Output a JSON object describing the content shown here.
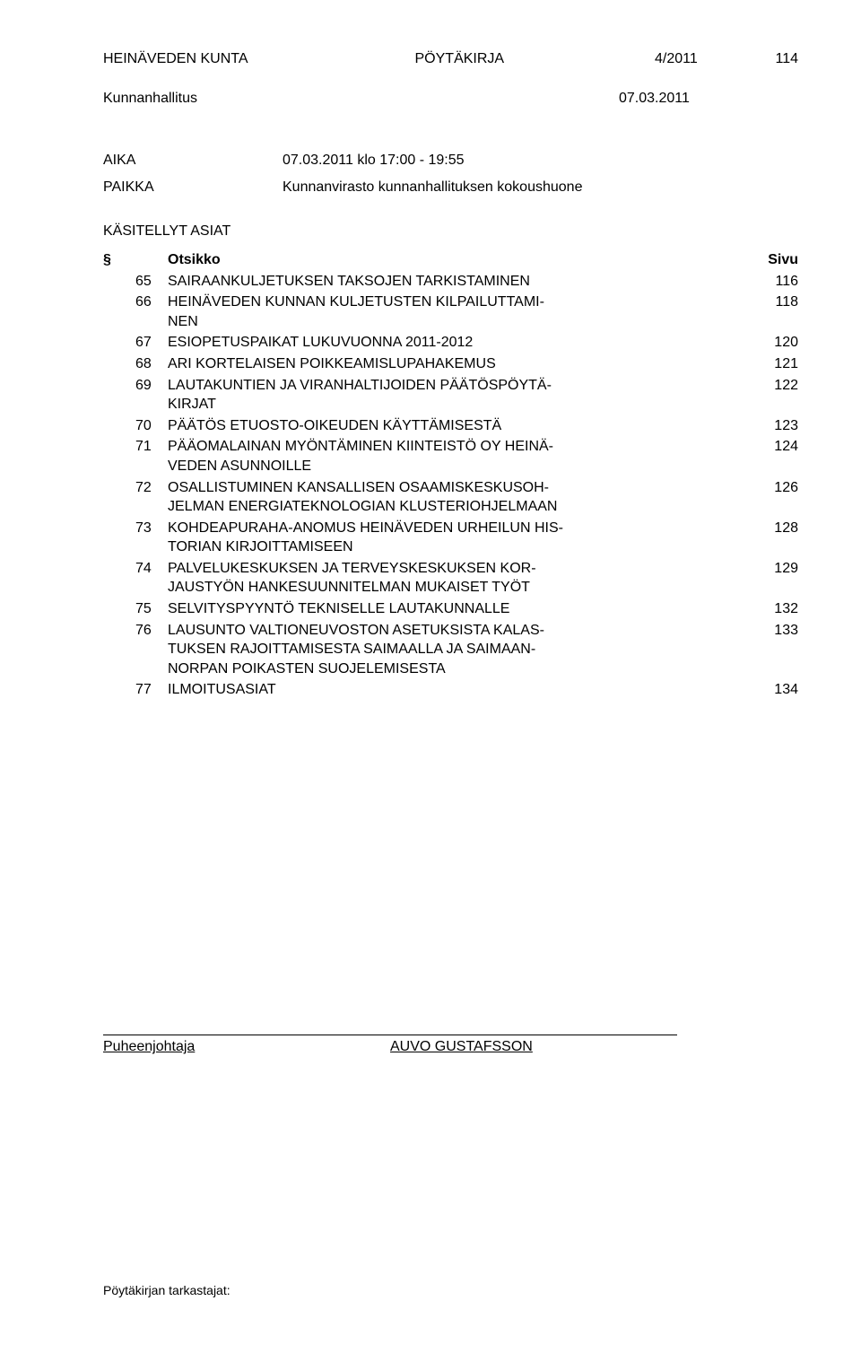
{
  "header": {
    "org": "HEINÄVEDEN KUNTA",
    "doc_type": "PÖYTÄKIRJA",
    "doc_number": "4/2011",
    "page_number": "114"
  },
  "subheader": {
    "board": "Kunnanhallitus",
    "date": "07.03.2011"
  },
  "meeting": {
    "aika_label": "AIKA",
    "aika_value": "07.03.2011 klo 17:00 - 19:55",
    "paikka_label": "PAIKKA",
    "paikka_value": "Kunnanvirasto kunnanhallituksen kokoushuone"
  },
  "toc": {
    "heading": "KÄSITELLYT ASIAT",
    "col_sym": "§",
    "col_title": "Otsikko",
    "col_page": "Sivu",
    "items": [
      {
        "num": "65",
        "title": "SAIRAANKULJETUKSEN TAKSOJEN TARKISTAMINEN",
        "page": "116"
      },
      {
        "num": "66",
        "title": "HEINÄVEDEN KUNNAN KULJETUSTEN KILPAILUTTAMI-\nNEN",
        "page": "118"
      },
      {
        "num": "67",
        "title": "ESIOPETUSPAIKAT LUKUVUONNA 2011-2012",
        "page": "120"
      },
      {
        "num": "68",
        "title": "ARI KORTELAISEN POIKKEAMISLUPAHAKEMUS",
        "page": "121"
      },
      {
        "num": "69",
        "title": "LAUTAKUNTIEN JA VIRANHALTIJOIDEN PÄÄTÖSPÖYTÄ-\nKIRJAT",
        "page": "122"
      },
      {
        "num": "70",
        "title": "PÄÄTÖS ETUOSTO-OIKEUDEN KÄYTTÄMISESTÄ",
        "page": "123"
      },
      {
        "num": "71",
        "title": "PÄÄOMALAINAN MYÖNTÄMINEN KIINTEISTÖ OY HEINÄ-\nVEDEN ASUNNOILLE",
        "page": "124"
      },
      {
        "num": "72",
        "title": "OSALLISTUMINEN KANSALLISEN OSAAMISKESKUSOH-\nJELMAN ENERGIATEKNOLOGIAN KLUSTERIOHJELMAAN",
        "page": "126"
      },
      {
        "num": "73",
        "title": "KOHDEAPURAHA-ANOMUS HEINÄVEDEN URHEILUN HIS-\nTORIAN KIRJOITTAMISEEN",
        "page": "128"
      },
      {
        "num": "74",
        "title": "PALVELUKESKUKSEN JA TERVEYSKESKUKSEN KOR-\nJAUSTYÖN HANKESUUNNITELMAN MUKAISET TYÖT",
        "page": "129"
      },
      {
        "num": "75",
        "title": "SELVITYSPYYNTÖ TEKNISELLE LAUTAKUNNALLE",
        "page": "132"
      },
      {
        "num": "76",
        "title": "LAUSUNTO VALTIONEUVOSTON ASETUKSISTA KALAS-\nTUKSEN RAJOITTAMISESTA SAIMAALLA JA SAIMAAN-\nNORPAN POIKASTEN SUOJELEMISESTA",
        "page": "133"
      },
      {
        "num": "77",
        "title": "ILMOITUSASIAT",
        "page": "134"
      }
    ]
  },
  "signature": {
    "role": "Puheenjohtaja",
    "name": "AUVO GUSTAFSSON"
  },
  "footer": {
    "text": "Pöytäkirjan tarkastajat:"
  }
}
